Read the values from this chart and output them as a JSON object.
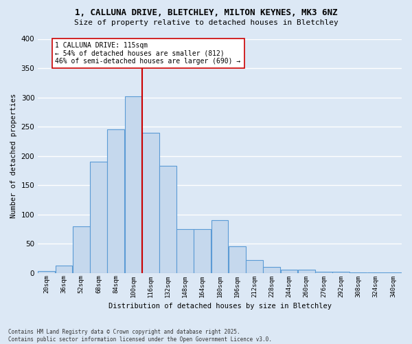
{
  "title_line1": "1, CALLUNA DRIVE, BLETCHLEY, MILTON KEYNES, MK3 6NZ",
  "title_line2": "Size of property relative to detached houses in Bletchley",
  "xlabel": "Distribution of detached houses by size in Bletchley",
  "ylabel": "Number of detached properties",
  "categories": [
    "20sqm",
    "36sqm",
    "52sqm",
    "68sqm",
    "84sqm",
    "100sqm",
    "116sqm",
    "132sqm",
    "148sqm",
    "164sqm",
    "180sqm",
    "196sqm",
    "212sqm",
    "228sqm",
    "244sqm",
    "260sqm",
    "276sqm",
    "292sqm",
    "308sqm",
    "324sqm",
    "340sqm"
  ],
  "bar_values": [
    3,
    13,
    79,
    190,
    245,
    302,
    240,
    183,
    75,
    75,
    90,
    45,
    22,
    10,
    6,
    6,
    2,
    2,
    1,
    1,
    1
  ],
  "bar_color": "#c5d8ed",
  "bar_edge_color": "#5b9bd5",
  "vline_color": "#cc0000",
  "annotation_text": "1 CALLUNA DRIVE: 115sqm\n← 54% of detached houses are smaller (812)\n46% of semi-detached houses are larger (690) →",
  "annotation_box_color": "#ffffff",
  "annotation_box_edge": "#cc0000",
  "background_color": "#dce8f5",
  "grid_color": "#ffffff",
  "footer_text": "Contains HM Land Registry data © Crown copyright and database right 2025.\nContains public sector information licensed under the Open Government Licence v3.0.",
  "ylim": [
    0,
    400
  ],
  "yticks": [
    0,
    50,
    100,
    150,
    200,
    250,
    300,
    350,
    400
  ]
}
